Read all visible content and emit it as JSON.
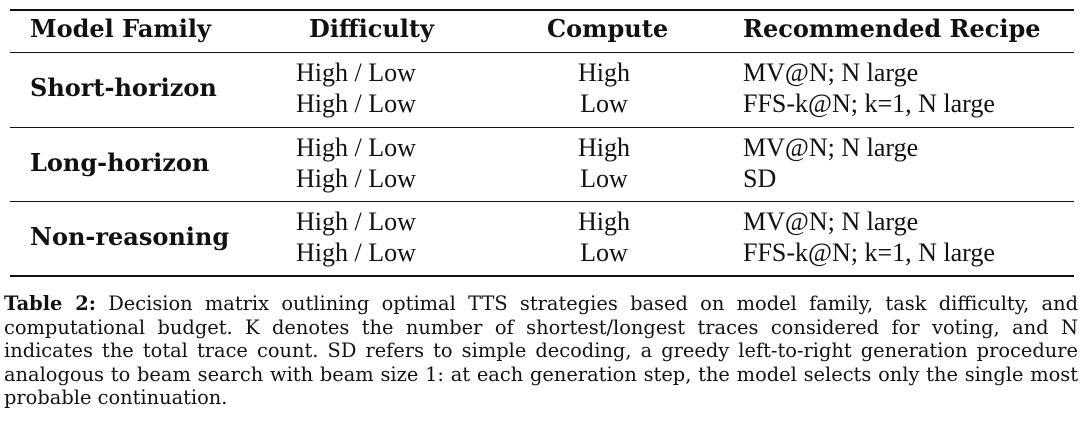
{
  "table": {
    "headers": {
      "model_family": "Model Family",
      "difficulty": "Difficulty",
      "compute": "Compute",
      "recipe": "Recommended Recipe"
    },
    "groups": [
      {
        "family": "Short-horizon",
        "rows": [
          {
            "difficulty": "High / Low",
            "compute": "High",
            "recipe": "MV@N; N large"
          },
          {
            "difficulty": "High / Low",
            "compute": "Low",
            "recipe": "FFS-k@N; k=1, N large"
          }
        ]
      },
      {
        "family": "Long-horizon",
        "rows": [
          {
            "difficulty": "High / Low",
            "compute": "High",
            "recipe": "MV@N; N large"
          },
          {
            "difficulty": "High / Low",
            "compute": "Low",
            "recipe": "SD"
          }
        ]
      },
      {
        "family": "Non-reasoning",
        "rows": [
          {
            "difficulty": "High / Low",
            "compute": "High",
            "recipe": "MV@N; N large"
          },
          {
            "difficulty": "High / Low",
            "compute": "Low",
            "recipe": "FFS-k@N; k=1, N large"
          }
        ]
      }
    ]
  },
  "caption": {
    "label": "Table 2:",
    "text": "Decision matrix outlining optimal TTS strategies based on model family, task difficulty, and computational budget. K denotes the number of shortest/longest traces considered for voting, and N indicates the total trace count. SD refers to simple decoding, a greedy left-to-right generation procedure analogous to beam search with beam size 1: at each generation step, the model selects only the single most probable continuation."
  }
}
